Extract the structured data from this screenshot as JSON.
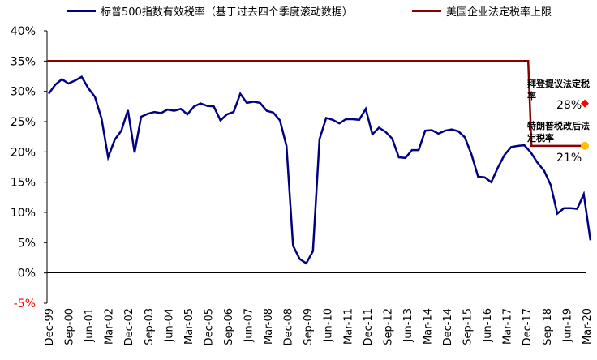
{
  "chart_data": {
    "type": "line",
    "title": "",
    "xlabel": "",
    "ylabel": "",
    "ylim": [
      -5,
      40
    ],
    "yticks": [
      "40%",
      "35%",
      "30%",
      "25%",
      "20%",
      "15%",
      "10%",
      "5%",
      "0%",
      "-5%"
    ],
    "xticks": [
      "Dec-99",
      "Sep-00",
      "Jun-01",
      "Mar-02",
      "Dec-02",
      "Sep-03",
      "Jun-04",
      "Mar-05",
      "Dec-05",
      "Sep-06",
      "Jun-07",
      "Mar-08",
      "Dec-08",
      "Sep-09",
      "Jun-10",
      "Mar-11",
      "Dec-11",
      "Sep-12",
      "Jun-13",
      "Mar-14",
      "Dec-14",
      "Sep-15",
      "Jun-16",
      "Mar-17",
      "Dec-17",
      "Sep-18",
      "Jun-19",
      "Mar-20"
    ],
    "series": [
      {
        "name": "标普500指数有效税率（基于过去四个季度滚动数据）",
        "color": "#000080",
        "values": [
          29.6,
          31.1,
          32.0,
          31.3,
          31.8,
          32.4,
          30.5,
          29.1,
          25.5,
          19.1,
          22.0,
          23.5,
          26.9,
          19.9,
          25.8,
          26.3,
          26.6,
          26.4,
          27.0,
          26.8,
          27.1,
          26.2,
          27.5,
          28.0,
          27.6,
          27.5,
          25.2,
          26.2,
          26.6,
          29.6,
          28.1,
          28.3,
          28.1,
          26.8,
          26.5,
          25.2,
          21.0,
          4.5,
          2.3,
          1.6,
          3.6,
          22.1,
          25.6,
          25.3,
          24.7,
          25.4,
          25.4,
          25.3,
          27.1,
          22.9,
          24.0,
          23.3,
          22.2,
          19.1,
          19.0,
          20.3,
          20.3,
          23.5,
          23.6,
          23.0,
          23.5,
          23.7,
          23.4,
          22.4,
          19.6,
          15.9,
          15.8,
          15.0,
          17.4,
          19.5,
          20.8,
          21.0,
          21.1,
          19.9,
          18.2,
          16.9,
          14.5,
          9.8,
          10.7,
          10.7,
          10.6,
          13.0,
          5.4
        ]
      },
      {
        "name": "美国企业法定税率上限",
        "color": "#8B0000",
        "values": [
          35,
          21
        ]
      }
    ],
    "annotations": [
      {
        "label": "拜登提议法定税率",
        "value": "28%",
        "marker_color": "#FF0000"
      },
      {
        "label": "特朗普税改后法定税率",
        "value": "21%",
        "marker_color": "#FFC000"
      }
    ]
  }
}
